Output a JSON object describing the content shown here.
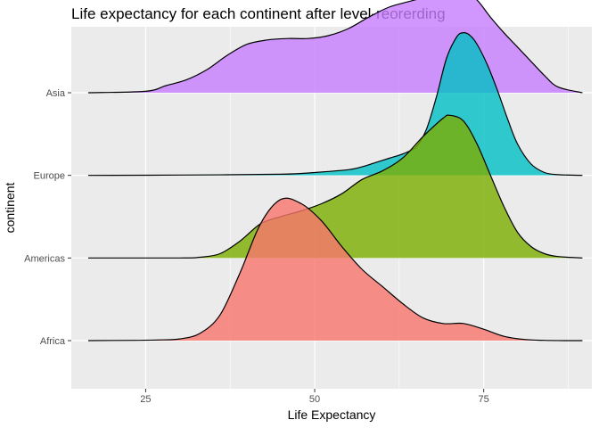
{
  "chart_data": {
    "type": "ridgeline-density",
    "title": "Life expectancy for each continent after level-reorerding",
    "xlabel": "Life Expectancy",
    "ylabel": "continent",
    "xlim": [
      14,
      91
    ],
    "x_ticks": [
      25,
      50,
      75
    ],
    "grid": true,
    "legend": "none",
    "categories": [
      "Africa",
      "Americas",
      "Europe",
      "Asia"
    ],
    "series": [
      {
        "name": "Africa",
        "color": "#F8766D",
        "x": [
          16.5,
          23.6,
          27.0,
          30.0,
          33.0,
          36.0,
          39.0,
          42.0,
          45.0,
          48.0,
          51.0,
          54.0,
          57.0,
          60.0,
          63.0,
          66.0,
          69.0,
          72.0,
          75.0,
          78.0,
          81.0,
          84.0,
          87.0,
          89.6
        ],
        "density": [
          0,
          0.002,
          0.005,
          0.012,
          0.05,
          0.18,
          0.48,
          0.82,
          0.99,
          0.96,
          0.84,
          0.66,
          0.5,
          0.38,
          0.26,
          0.16,
          0.12,
          0.12,
          0.08,
          0.03,
          0.008,
          0.002,
          0,
          0
        ]
      },
      {
        "name": "Americas",
        "color": "#7CAE00",
        "x": [
          16.5,
          30.0,
          33.0,
          36.0,
          39.0,
          42.0,
          45.0,
          48.0,
          51.0,
          54.0,
          57.0,
          60.0,
          63.0,
          66.0,
          69.0,
          70.0,
          72.0,
          74.0,
          76.0,
          78.0,
          80.0,
          82.0,
          84.0,
          86.0,
          89.6
        ],
        "density": [
          0,
          0,
          0.005,
          0.03,
          0.12,
          0.24,
          0.29,
          0.33,
          0.38,
          0.45,
          0.55,
          0.61,
          0.7,
          0.85,
          0.98,
          1.0,
          0.96,
          0.8,
          0.58,
          0.36,
          0.18,
          0.08,
          0.03,
          0.01,
          0
        ]
      },
      {
        "name": "Europe",
        "color": "#00BFC4",
        "x": [
          16.5,
          30.0,
          45.0,
          50.0,
          55.0,
          57.0,
          59.0,
          61.0,
          63.0,
          65.0,
          66.5,
          68.0,
          69.5,
          71.0,
          72.0,
          73.0,
          74.0,
          75.5,
          77.0,
          78.5,
          80.0,
          82.0,
          84.0,
          86.0,
          89.6
        ],
        "density": [
          0,
          0.002,
          0.008,
          0.02,
          0.04,
          0.06,
          0.09,
          0.12,
          0.15,
          0.2,
          0.32,
          0.55,
          0.82,
          0.97,
          1.0,
          0.98,
          0.92,
          0.78,
          0.6,
          0.4,
          0.22,
          0.08,
          0.02,
          0.005,
          0
        ]
      },
      {
        "name": "Asia",
        "color": "#C77CFF",
        "x": [
          16.5,
          25.0,
          28.0,
          31.0,
          34.0,
          37.0,
          40.0,
          43.0,
          46.0,
          49.0,
          52.0,
          55.0,
          58.0,
          61.0,
          64.0,
          67.0,
          70.0,
          72.0,
          74.0,
          76.0,
          78.0,
          80.0,
          82.0,
          84.0,
          86.0,
          89.6
        ],
        "density": [
          0,
          0.01,
          0.05,
          0.09,
          0.16,
          0.26,
          0.34,
          0.37,
          0.38,
          0.38,
          0.4,
          0.45,
          0.53,
          0.6,
          0.64,
          0.68,
          0.73,
          0.71,
          0.65,
          0.53,
          0.42,
          0.32,
          0.22,
          0.12,
          0.04,
          0
        ]
      }
    ]
  }
}
